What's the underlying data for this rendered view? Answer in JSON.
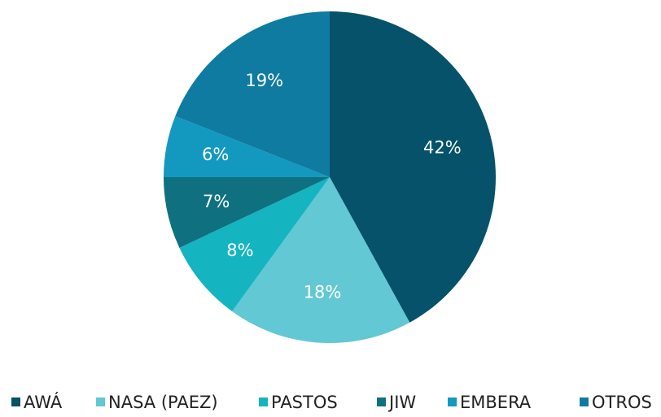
{
  "chart_data": {
    "type": "pie",
    "categories": [
      "AWÁ",
      "NASA (PAEZ)",
      "PASTOS",
      "JIW",
      "EMBERA",
      "OTROS"
    ],
    "values": [
      42,
      18,
      8,
      7,
      6,
      19
    ],
    "value_labels": [
      "42%",
      "18%",
      "8%",
      "7%",
      "6%",
      "19%"
    ],
    "colors": [
      "#05526a",
      "#62c8d3",
      "#14b4c0",
      "#0f7180",
      "#1399bf",
      "#0f7ba0"
    ],
    "legend": "bottom"
  }
}
